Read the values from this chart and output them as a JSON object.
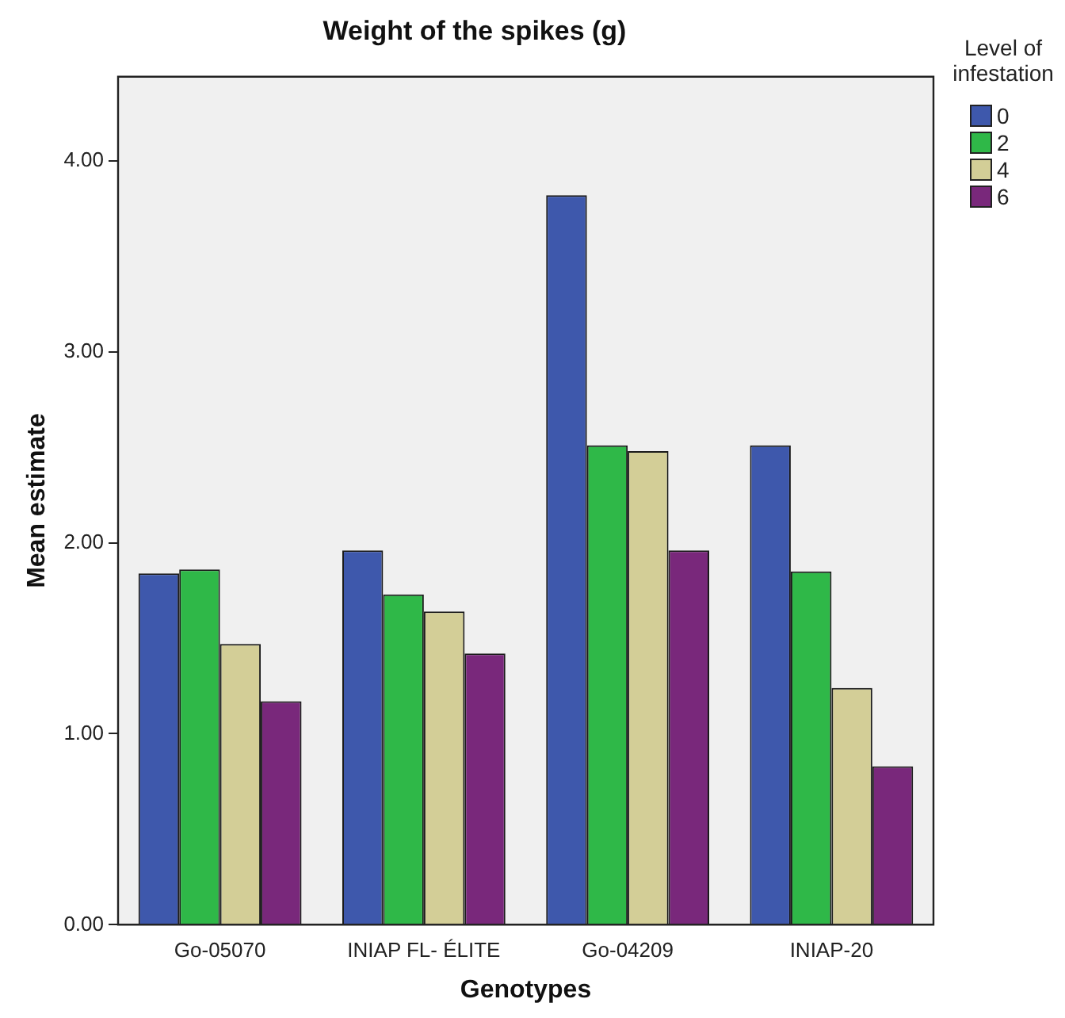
{
  "chart_data": {
    "type": "bar",
    "title": "Weight of the spikes (g)",
    "xlabel": "Genotypes",
    "ylabel": "Mean estimate",
    "legend_title": "Level of infestation",
    "legend": "top right",
    "grid": false,
    "categories": [
      "Go-05070",
      "INIAP FL- ÉLITE",
      "Go-04209",
      "INIAP-20"
    ],
    "series": [
      {
        "name": "0",
        "color": "#3e58ac",
        "values": [
          1.84,
          1.96,
          3.82,
          2.51
        ]
      },
      {
        "name": "2",
        "color": "#2fb848",
        "values": [
          1.86,
          1.73,
          2.51,
          1.85
        ]
      },
      {
        "name": "4",
        "color": "#d3ce97",
        "values": [
          1.47,
          1.64,
          2.48,
          1.24
        ]
      },
      {
        "name": "6",
        "color": "#79287b",
        "values": [
          1.17,
          1.42,
          1.96,
          0.83
        ]
      }
    ],
    "ylim": [
      0,
      4.44
    ],
    "yticks": [
      {
        "value": 0,
        "label": "0.00"
      },
      {
        "value": 1,
        "label": "1.00"
      },
      {
        "value": 2,
        "label": "2.00"
      },
      {
        "value": 3,
        "label": "3.00"
      },
      {
        "value": 4,
        "label": "4.00"
      }
    ]
  }
}
